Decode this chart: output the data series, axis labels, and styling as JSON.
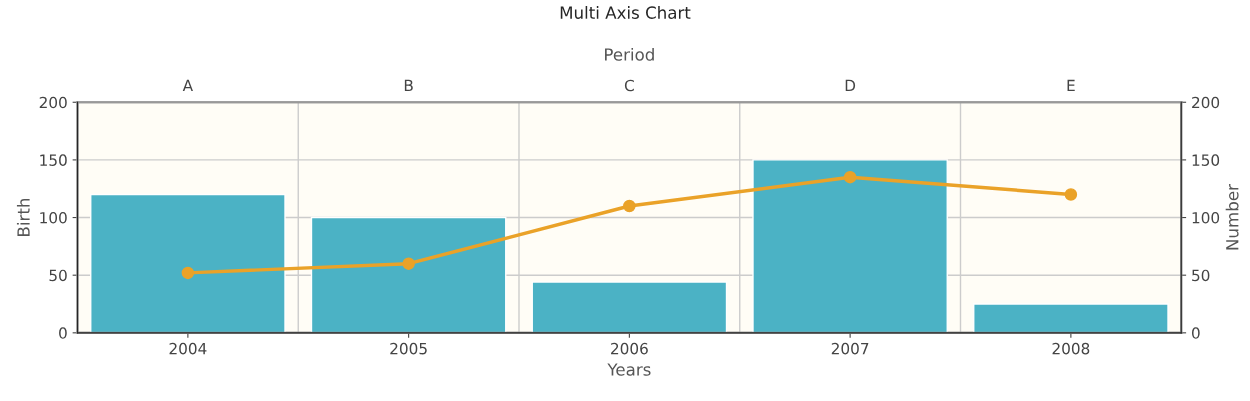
{
  "chart_data": {
    "type": "bar",
    "title": "Multi Axis Chart",
    "xlabel": "Years",
    "x2label": "Period",
    "ylabel": "Birth",
    "y2label": "Number",
    "categories": [
      "2004",
      "2005",
      "2006",
      "2007",
      "2008"
    ],
    "annotations": [
      "A",
      "B",
      "C",
      "D",
      "E"
    ],
    "series": [
      {
        "color": "#4bb2c5",
        "values": [
          120,
          100,
          44,
          150,
          25
        ]
      },
      {
        "type": "line",
        "axis": "y2",
        "color": "#eaa228",
        "values": [
          52,
          60,
          110,
          135,
          120
        ],
        "marker": "circle",
        "line_style": "solid"
      }
    ],
    "ylim": [
      0,
      200
    ],
    "yticks": [
      0,
      50,
      100,
      150,
      200
    ],
    "y2lim": [
      0,
      200
    ],
    "y2ticks": [
      0,
      50,
      100,
      150,
      200
    ],
    "grid": true,
    "legend": false
  }
}
